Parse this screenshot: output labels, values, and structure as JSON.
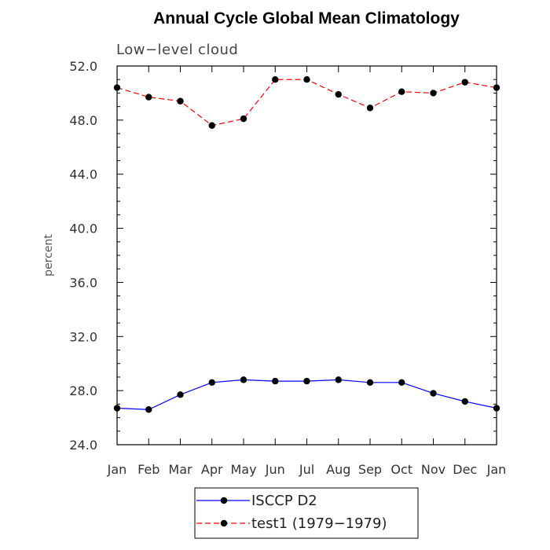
{
  "chart_data": {
    "type": "line",
    "title": "Annual Cycle Global Mean Climatology",
    "subtitle": "Low−level cloud",
    "xlabel": "",
    "ylabel": "percent",
    "categories": [
      "Jan",
      "Feb",
      "Mar",
      "Apr",
      "May",
      "Jun",
      "Jul",
      "Aug",
      "Sep",
      "Oct",
      "Nov",
      "Dec",
      "Jan"
    ],
    "ylim": [
      24.0,
      52.0
    ],
    "yticks": [
      "24.0",
      "28.0",
      "32.0",
      "36.0",
      "40.0",
      "44.0",
      "48.0",
      "52.0"
    ],
    "legend_position": "bottom-center",
    "series": [
      {
        "name": "ISCCP D2",
        "legend_label": "ISCCP D2",
        "color": "#0000ff",
        "dash": "solid",
        "values": [
          26.7,
          26.6,
          27.7,
          28.6,
          28.8,
          28.7,
          28.7,
          28.8,
          28.6,
          28.6,
          27.8,
          27.2,
          26.7
        ]
      },
      {
        "name": "test1 (1979-1979)",
        "legend_label": "test1 (1979−1979)",
        "color": "#ff0000",
        "dash": "dashed",
        "values": [
          50.4,
          49.7,
          49.4,
          47.6,
          48.1,
          51.0,
          51.0,
          49.9,
          48.9,
          50.1,
          50.0,
          50.8,
          50.4
        ]
      }
    ]
  }
}
